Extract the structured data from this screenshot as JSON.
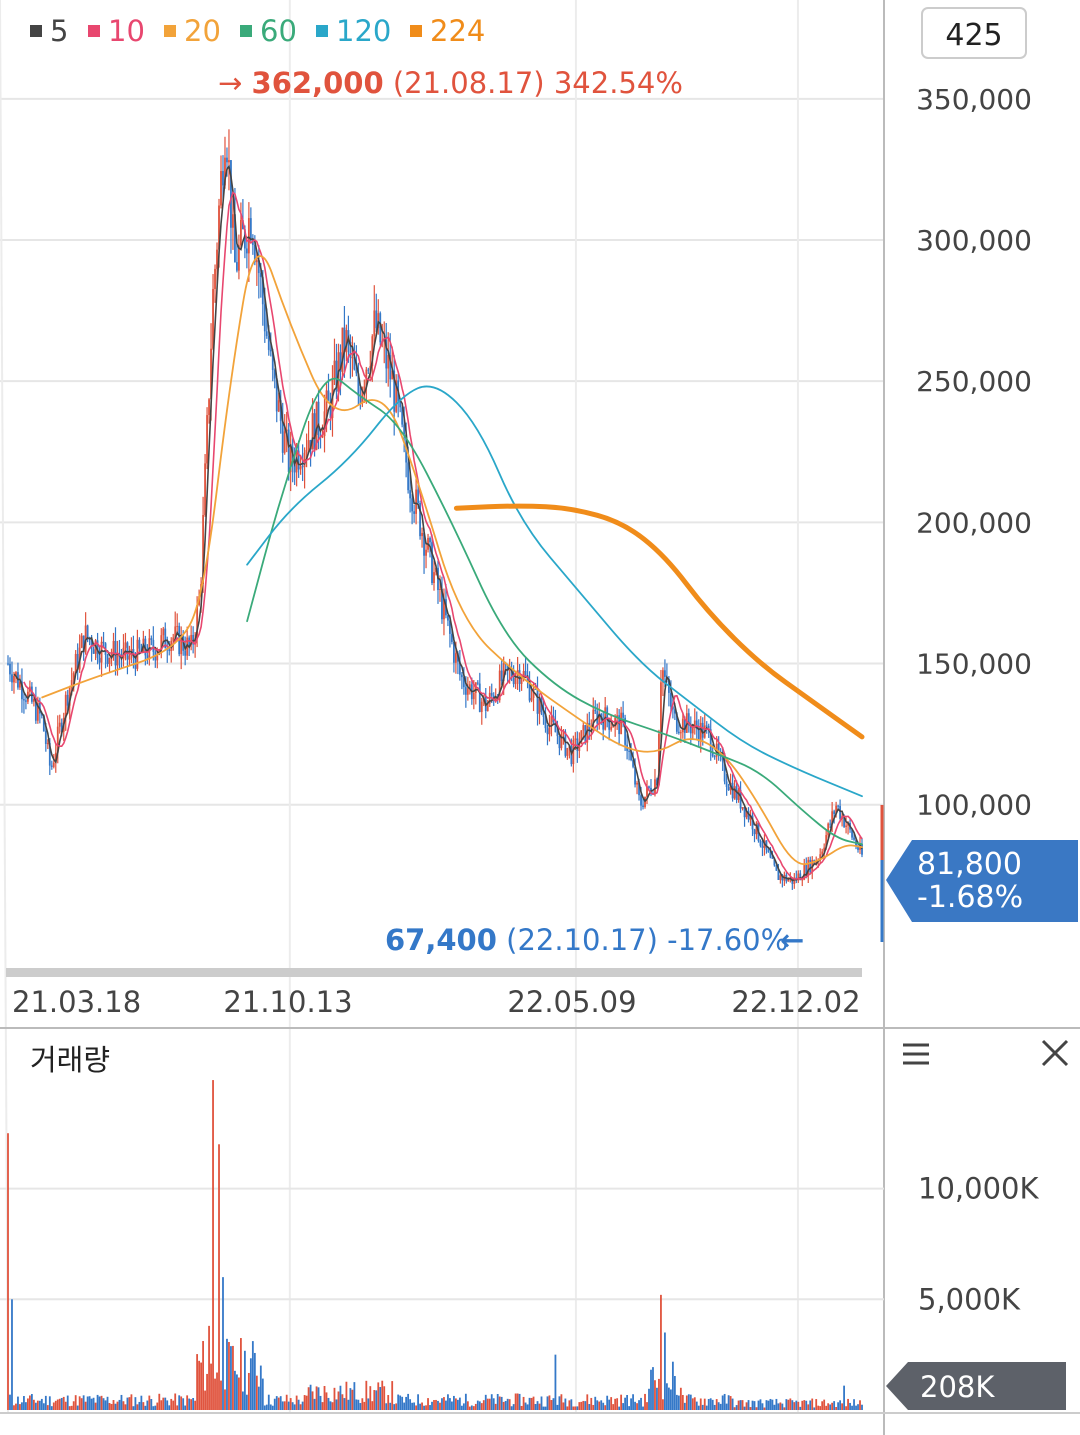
{
  "legend": [
    {
      "label": "5",
      "color": "#444444"
    },
    {
      "label": "10",
      "color": "#e8476f"
    },
    {
      "label": "20",
      "color": "#f2a33a"
    },
    {
      "label": "60",
      "color": "#3aaa7a"
    },
    {
      "label": "120",
      "color": "#2aa7c9"
    },
    {
      "label": "224",
      "color": "#f08c1a"
    }
  ],
  "period_box": "425",
  "high_annotation": {
    "arrow": "→",
    "value": "362,000",
    "date": "(21.08.17)",
    "pct": "342.54%"
  },
  "low_annotation": {
    "value": "67,400",
    "date": "(22.10.17)",
    "pct": "-17.60%",
    "arrow": "←"
  },
  "current_price": {
    "value": "81,800",
    "change": "-1.68%"
  },
  "volume_panel": {
    "title": "거래량",
    "current_value": "208K",
    "y_ticks": [
      "10,000K",
      "5,000K"
    ]
  },
  "colors": {
    "up": "#e0533d",
    "down": "#3478c8",
    "current_box": "#3a78c4",
    "volume_box": "#5d6169"
  },
  "chart_data": [
    {
      "type": "candlestick",
      "title": "",
      "ylim": [
        45000,
        385000
      ],
      "y_ticks": [
        350000,
        300000,
        250000,
        200000,
        150000,
        100000
      ],
      "y_tick_labels": [
        "350,000",
        "300,000",
        "250,000",
        "200,000",
        "150,000",
        "100,000"
      ],
      "x_tick_labels": [
        "21.03.18",
        "21.10.13",
        "22.05.09",
        "22.12.02"
      ],
      "high": {
        "value": 362000,
        "date": "21.08.17"
      },
      "low": {
        "value": 67400,
        "date": "22.10.17"
      },
      "last_close": 81800,
      "price_path": [
        [
          0,
          150000
        ],
        [
          0.04,
          130000
        ],
        [
          0.05,
          112000
        ],
        [
          0.07,
          140000
        ],
        [
          0.09,
          160000
        ],
        [
          0.11,
          155000
        ],
        [
          0.14,
          152000
        ],
        [
          0.17,
          155000
        ],
        [
          0.19,
          160000
        ],
        [
          0.215,
          155000
        ],
        [
          0.225,
          175000
        ],
        [
          0.24,
          280000
        ],
        [
          0.255,
          345000
        ],
        [
          0.265,
          290000
        ],
        [
          0.285,
          310000
        ],
        [
          0.31,
          250000
        ],
        [
          0.33,
          220000
        ],
        [
          0.35,
          230000
        ],
        [
          0.375,
          240000
        ],
        [
          0.395,
          265000
        ],
        [
          0.41,
          245000
        ],
        [
          0.43,
          270000
        ],
        [
          0.45,
          250000
        ],
        [
          0.47,
          215000
        ],
        [
          0.5,
          180000
        ],
        [
          0.53,
          145000
        ],
        [
          0.56,
          135000
        ],
        [
          0.58,
          145000
        ],
        [
          0.6,
          148000
        ],
        [
          0.63,
          130000
        ],
        [
          0.66,
          118000
        ],
        [
          0.69,
          132000
        ],
        [
          0.72,
          128000
        ],
        [
          0.74,
          100000
        ],
        [
          0.76,
          110000
        ],
        [
          0.765,
          150000
        ],
        [
          0.78,
          130000
        ],
        [
          0.8,
          128000
        ],
        [
          0.82,
          125000
        ],
        [
          0.84,
          110000
        ],
        [
          0.87,
          95000
        ],
        [
          0.9,
          75000
        ],
        [
          0.92,
          73000
        ],
        [
          0.95,
          82000
        ],
        [
          0.97,
          100000
        ],
        [
          1,
          81800
        ]
      ],
      "moving_averages": [
        {
          "name": "20",
          "path": [
            [
              0.04,
              138000
            ],
            [
              0.1,
              145000
            ],
            [
              0.2,
              155000
            ],
            [
              0.23,
              175000
            ],
            [
              0.26,
              250000
            ],
            [
              0.29,
              305000
            ],
            [
              0.33,
              270000
            ],
            [
              0.38,
              235000
            ],
            [
              0.44,
              248000
            ],
            [
              0.48,
              215000
            ],
            [
              0.53,
              165000
            ],
            [
              0.6,
              145000
            ],
            [
              0.67,
              130000
            ],
            [
              0.72,
              120000
            ],
            [
              0.76,
              118000
            ],
            [
              0.8,
              125000
            ],
            [
              0.84,
              118000
            ],
            [
              0.88,
              100000
            ],
            [
              0.92,
              78000
            ],
            [
              0.95,
              80000
            ],
            [
              0.98,
              86000
            ],
            [
              1,
              85000
            ]
          ]
        },
        {
          "name": "60",
          "path": [
            [
              0.28,
              165000
            ],
            [
              0.32,
              210000
            ],
            [
              0.37,
              255000
            ],
            [
              0.41,
              245000
            ],
            [
              0.46,
              235000
            ],
            [
              0.52,
              200000
            ],
            [
              0.58,
              160000
            ],
            [
              0.64,
              142000
            ],
            [
              0.7,
              132000
            ],
            [
              0.77,
              125000
            ],
            [
              0.83,
              118000
            ],
            [
              0.88,
              112000
            ],
            [
              0.93,
              98000
            ],
            [
              0.97,
              88000
            ],
            [
              1,
              86000
            ]
          ]
        },
        {
          "name": "120",
          "path": [
            [
              0.28,
              185000
            ],
            [
              0.33,
              205000
            ],
            [
              0.4,
              222000
            ],
            [
              0.46,
              245000
            ],
            [
              0.5,
              250000
            ],
            [
              0.55,
              235000
            ],
            [
              0.6,
              200000
            ],
            [
              0.67,
              175000
            ],
            [
              0.74,
              150000
            ],
            [
              0.8,
              136000
            ],
            [
              0.86,
              122000
            ],
            [
              0.92,
              113000
            ],
            [
              1,
              103000
            ]
          ]
        },
        {
          "name": "224",
          "path": [
            [
              0.525,
              205000
            ],
            [
              0.6,
              206000
            ],
            [
              0.66,
              205000
            ],
            [
              0.72,
              200000
            ],
            [
              0.77,
              188000
            ],
            [
              0.82,
              168000
            ],
            [
              0.88,
              150000
            ],
            [
              0.94,
              137000
            ],
            [
              1,
              124000
            ]
          ]
        }
      ]
    },
    {
      "type": "bar",
      "title": "거래량",
      "ylim": [
        0,
        14000
      ],
      "y_ticks": [
        10000,
        5000
      ],
      "y_tick_labels": [
        "10,000K",
        "5,000K"
      ],
      "spikes": [
        [
          0,
          12500
        ],
        [
          0.005,
          5000
        ],
        [
          0.235,
          3800
        ],
        [
          0.24,
          14900
        ],
        [
          0.248,
          12000
        ],
        [
          0.252,
          6000
        ],
        [
          0.64,
          2500
        ],
        [
          0.765,
          5200
        ],
        [
          0.77,
          3500
        ],
        [
          0.98,
          1100
        ]
      ],
      "last_value": 208
    }
  ]
}
